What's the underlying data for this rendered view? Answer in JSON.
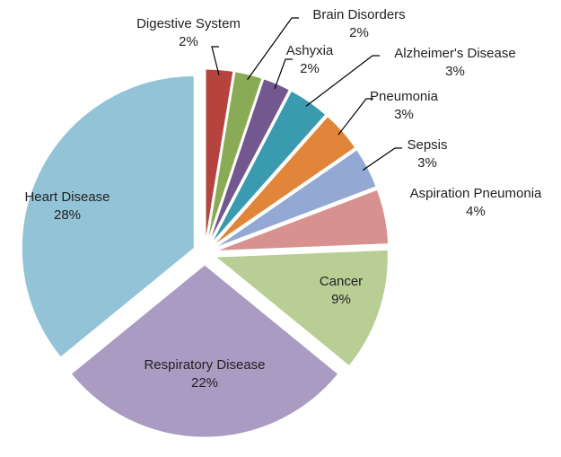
{
  "chart_data": {
    "type": "pie",
    "categories": [
      "Digestive System",
      "Brain Disorders",
      "Ashyxia",
      "Alzheimer's Disease",
      "Pneumonia",
      "Sepsis",
      "Aspiration Pneumonia",
      "Cancer",
      "Respiratory Disease",
      "Heart Disease"
    ],
    "values": [
      2,
      2,
      2,
      3,
      3,
      3,
      4,
      9,
      22,
      28
    ],
    "value_labels": [
      "2%",
      "2%",
      "2%",
      "3%",
      "3%",
      "3%",
      "4%",
      "9%",
      "22%",
      "28%"
    ],
    "colors": [
      "#b5443f",
      "#8aab55",
      "#72588f",
      "#3a9ab0",
      "#e0853a",
      "#93a8d3",
      "#d79290",
      "#b9ce95",
      "#a99bc2",
      "#93c3d6"
    ]
  }
}
